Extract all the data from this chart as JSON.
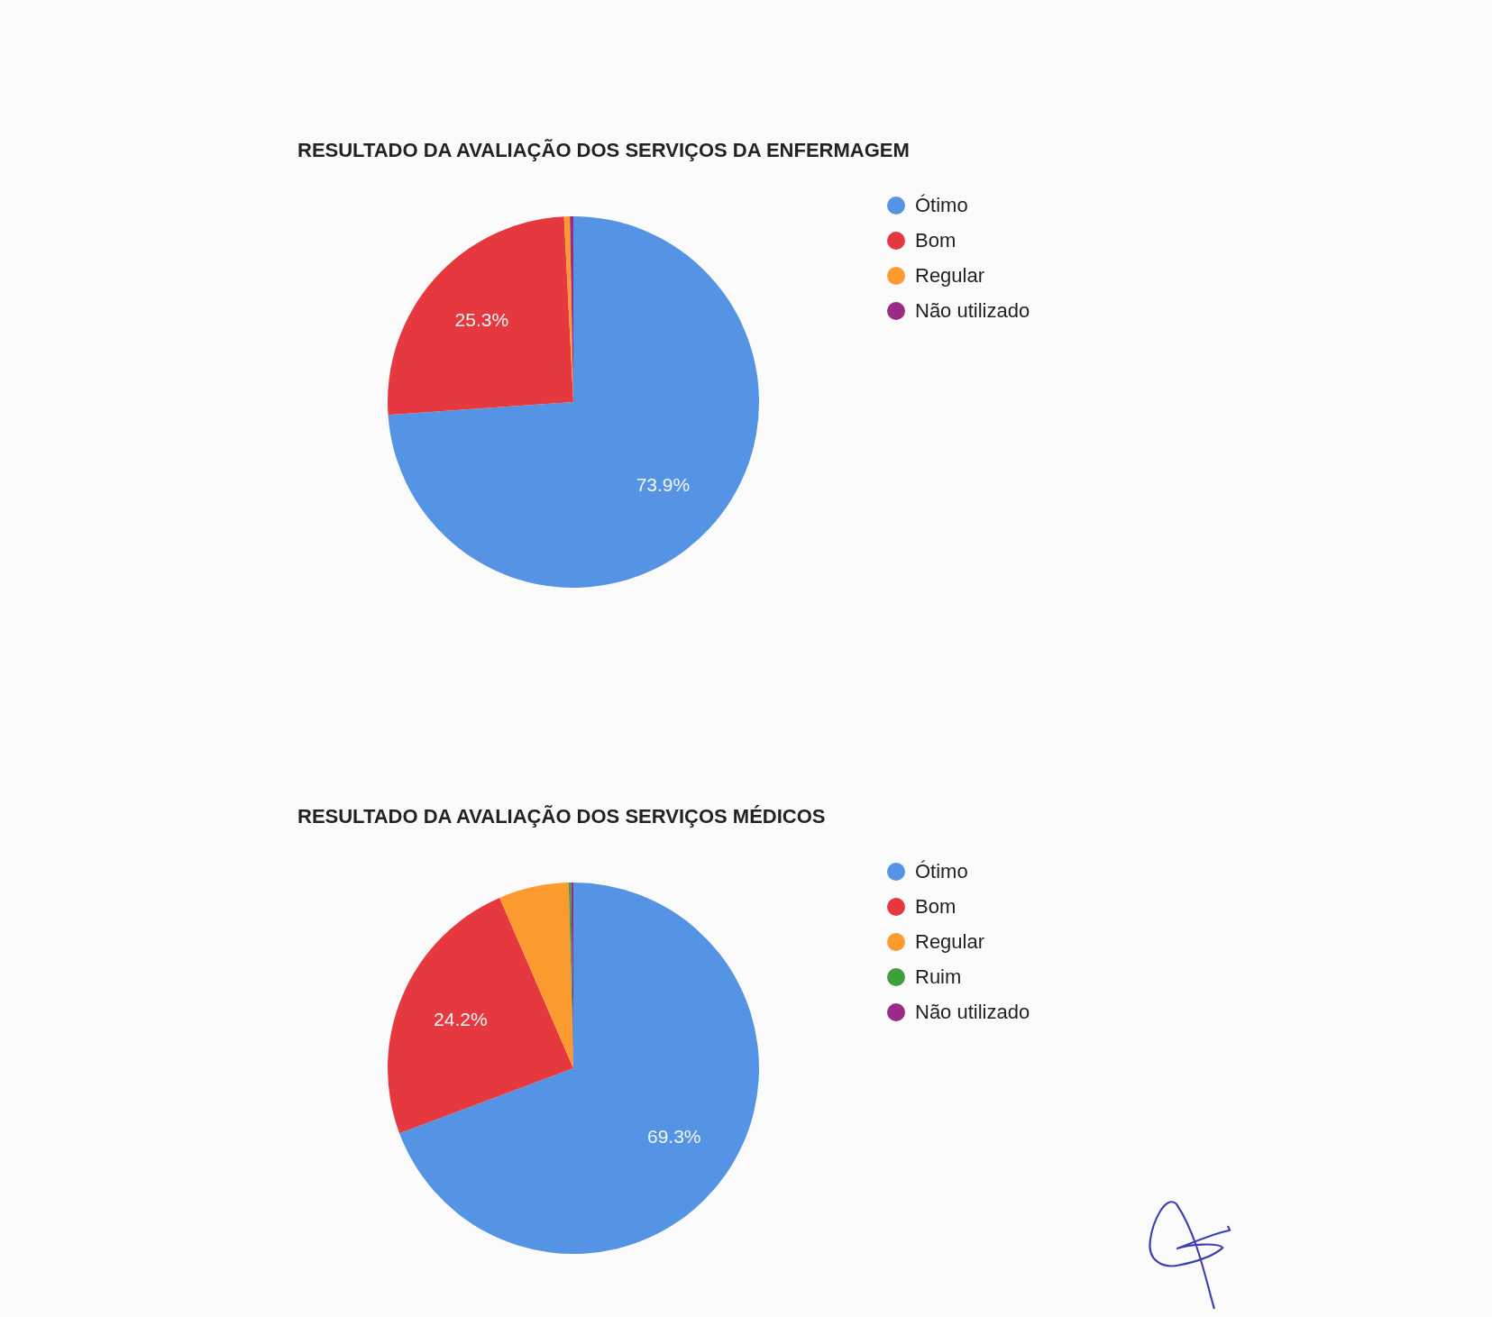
{
  "chart_data": [
    {
      "type": "pie",
      "title": "RESULTADO DA AVALIAÇÃO DOS SERVIÇOS DA ENFERMAGEM",
      "categories": [
        "Ótimo",
        "Bom",
        "Regular",
        "Não utilizado"
      ],
      "values": [
        73.9,
        25.3,
        0.5,
        0.3
      ],
      "colors": [
        "#5594e4",
        "#e5393f",
        "#fb9a2e",
        "#9a2c87"
      ],
      "value_labels": [
        "73.9%",
        "25.3%",
        null,
        null
      ],
      "legend": "right"
    },
    {
      "type": "pie",
      "title": "RESULTADO DA AVALIAÇÃO DOS SERVIÇOS MÉDICOS",
      "categories": [
        "Ótimo",
        "Bom",
        "Regular",
        "Ruim",
        "Não utilizado"
      ],
      "values": [
        69.3,
        24.2,
        6.1,
        0.2,
        0.2
      ],
      "colors": [
        "#5594e4",
        "#e5393f",
        "#fb9a2e",
        "#3f9f3a",
        "#9a2c87"
      ],
      "value_labels": [
        "69.3%",
        "24.2%",
        null,
        null,
        null
      ],
      "legend": "right"
    }
  ]
}
